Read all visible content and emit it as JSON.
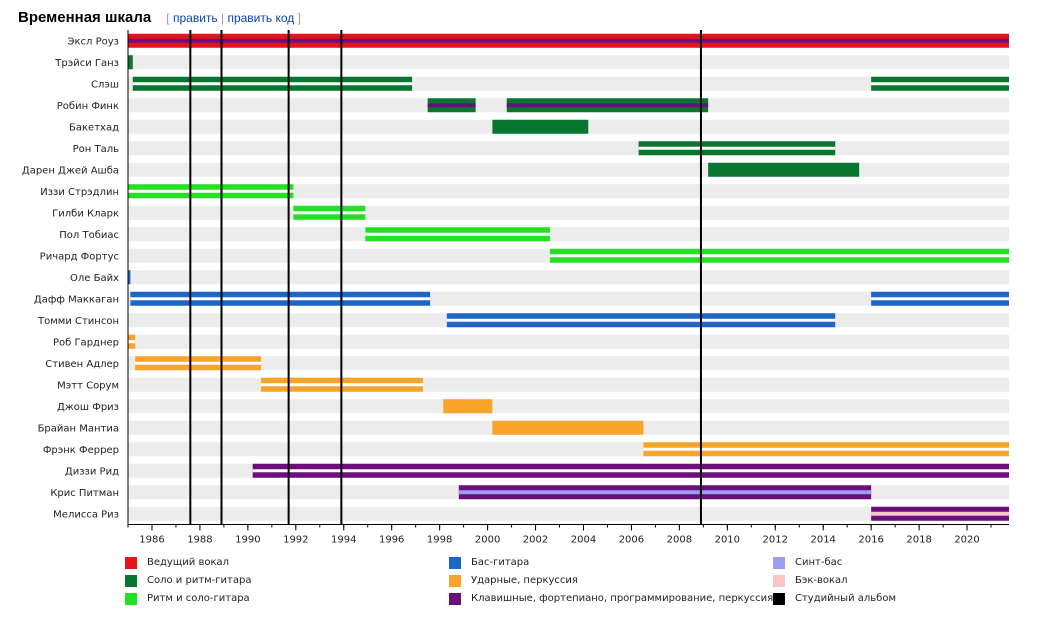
{
  "header": {
    "title": "Временная шкала",
    "edit_open": "[",
    "edit_label": "править",
    "edit_sep": "|",
    "edit_code_label": "править код",
    "edit_close": "]"
  },
  "chart_data": {
    "type": "timeline",
    "x_axis": {
      "min": 1985.0,
      "max": 2021.75,
      "ticks": [
        1986,
        1988,
        1990,
        1992,
        1994,
        1996,
        1998,
        2000,
        2002,
        2004,
        2006,
        2008,
        2010,
        2012,
        2014,
        2016,
        2018,
        2020
      ]
    },
    "roles": {
      "lead_vocals": {
        "label": "Ведущий вокал",
        "color": "#e4141a"
      },
      "lead_rhythm": {
        "label": "Соло и ритм-гитара",
        "color": "#08762f"
      },
      "rhythm_lead": {
        "label": "Ритм и соло-гитара",
        "color": "#23e020"
      },
      "bass": {
        "label": "Бас-гитара",
        "color": "#1d66c5"
      },
      "drums": {
        "label": "Ударные, перкуссия",
        "color": "#f8a42a"
      },
      "keys": {
        "label": "Клавишные, фортепиано, программирование, перкуссия",
        "color": "#6b107a"
      },
      "synth_bass": {
        "label": "Синт-бас",
        "color": "#9b9cf4"
      },
      "backing_vocals": {
        "label": "Бэк-вокал",
        "color": "#f7c7c8"
      },
      "studio_album": {
        "label": "Студийный альбом",
        "color": "#000000"
      }
    },
    "legend_columns": [
      [
        "lead_vocals",
        "lead_rhythm",
        "rhythm_lead"
      ],
      [
        "bass",
        "drums",
        "keys"
      ],
      [
        "synth_bass",
        "backing_vocals",
        "studio_album"
      ]
    ],
    "members": [
      {
        "name": "Эксл Роуз",
        "bars": [
          {
            "role": "lead_vocals",
            "start": 1985.0,
            "end": 2021.75,
            "stripe": "keys"
          }
        ]
      },
      {
        "name": "Трэйси Ганз",
        "bars": [
          {
            "role": "lead_rhythm",
            "start": 1985.0,
            "end": 1985.2,
            "stripe": null
          }
        ]
      },
      {
        "name": "Слэш",
        "bars": [
          {
            "role": "lead_rhythm",
            "start": 1985.2,
            "end": 1996.85,
            "stripe": "white"
          },
          {
            "role": "lead_rhythm",
            "start": 2016.0,
            "end": 2021.75,
            "stripe": "white"
          }
        ]
      },
      {
        "name": "Робин Финк",
        "bars": [
          {
            "role": "lead_rhythm",
            "start": 1997.5,
            "end": 1999.5,
            "stripe": "keys"
          },
          {
            "role": "lead_rhythm",
            "start": 2000.8,
            "end": 2009.2,
            "stripe": "keys"
          }
        ]
      },
      {
        "name": "Бакетхад",
        "bars": [
          {
            "role": "lead_rhythm",
            "start": 2000.2,
            "end": 2004.2,
            "stripe": null
          }
        ]
      },
      {
        "name": "Рон Таль",
        "bars": [
          {
            "role": "lead_rhythm",
            "start": 2006.3,
            "end": 2014.5,
            "stripe": "white"
          }
        ]
      },
      {
        "name": "Дарен Джей Ашба",
        "bars": [
          {
            "role": "lead_rhythm",
            "start": 2009.2,
            "end": 2015.5,
            "stripe": null
          }
        ]
      },
      {
        "name": "Иззи Стрэдлин",
        "bars": [
          {
            "role": "rhythm_lead",
            "start": 1985.0,
            "end": 1991.9,
            "stripe": "white"
          }
        ]
      },
      {
        "name": "Гилби Кларк",
        "bars": [
          {
            "role": "rhythm_lead",
            "start": 1991.9,
            "end": 1994.9,
            "stripe": "white"
          }
        ]
      },
      {
        "name": "Пол Тобиас",
        "bars": [
          {
            "role": "rhythm_lead",
            "start": 1994.9,
            "end": 2002.6,
            "stripe": "white"
          }
        ]
      },
      {
        "name": "Ричард Фортус",
        "bars": [
          {
            "role": "rhythm_lead",
            "start": 2002.6,
            "end": 2021.75,
            "stripe": "white"
          }
        ]
      },
      {
        "name": "Оле Байх",
        "bars": [
          {
            "role": "bass",
            "start": 1985.0,
            "end": 1985.1,
            "stripe": null
          }
        ]
      },
      {
        "name": "Дафф Маккаган",
        "bars": [
          {
            "role": "bass",
            "start": 1985.1,
            "end": 1997.6,
            "stripe": "white"
          },
          {
            "role": "bass",
            "start": 2016.0,
            "end": 2021.75,
            "stripe": "white"
          }
        ]
      },
      {
        "name": "Томми Стинсон",
        "bars": [
          {
            "role": "bass",
            "start": 1998.3,
            "end": 2014.5,
            "stripe": "white"
          }
        ]
      },
      {
        "name": "Роб Гарднер",
        "bars": [
          {
            "role": "drums",
            "start": 1985.0,
            "end": 1985.3,
            "stripe": "white"
          }
        ]
      },
      {
        "name": "Стивен Адлер",
        "bars": [
          {
            "role": "drums",
            "start": 1985.3,
            "end": 1990.55,
            "stripe": "white"
          }
        ]
      },
      {
        "name": "Мэтт Сорум",
        "bars": [
          {
            "role": "drums",
            "start": 1990.55,
            "end": 1997.3,
            "stripe": "white"
          }
        ]
      },
      {
        "name": "Джош Фриз",
        "bars": [
          {
            "role": "drums",
            "start": 1998.15,
            "end": 2000.2,
            "stripe": null
          }
        ]
      },
      {
        "name": "Брайан Мантиа",
        "bars": [
          {
            "role": "drums",
            "start": 2000.2,
            "end": 2006.5,
            "stripe": null
          }
        ]
      },
      {
        "name": "Фрэнк Феррер",
        "bars": [
          {
            "role": "drums",
            "start": 2006.5,
            "end": 2021.75,
            "stripe": "white"
          }
        ]
      },
      {
        "name": "Диззи Рид",
        "bars": [
          {
            "role": "keys",
            "start": 1990.2,
            "end": 2021.75,
            "stripe": "white"
          }
        ]
      },
      {
        "name": "Крис Питман",
        "bars": [
          {
            "role": "keys",
            "start": 1998.8,
            "end": 2016.0,
            "stripe": "synth_bass"
          }
        ]
      },
      {
        "name": "Мелисса Риз",
        "bars": [
          {
            "role": "keys",
            "start": 2016.0,
            "end": 2021.75,
            "stripe": "backing_vocals"
          }
        ]
      }
    ],
    "studio_albums": [
      1987.6,
      1991.7,
      1988.9,
      1993.9,
      2008.9
    ]
  }
}
